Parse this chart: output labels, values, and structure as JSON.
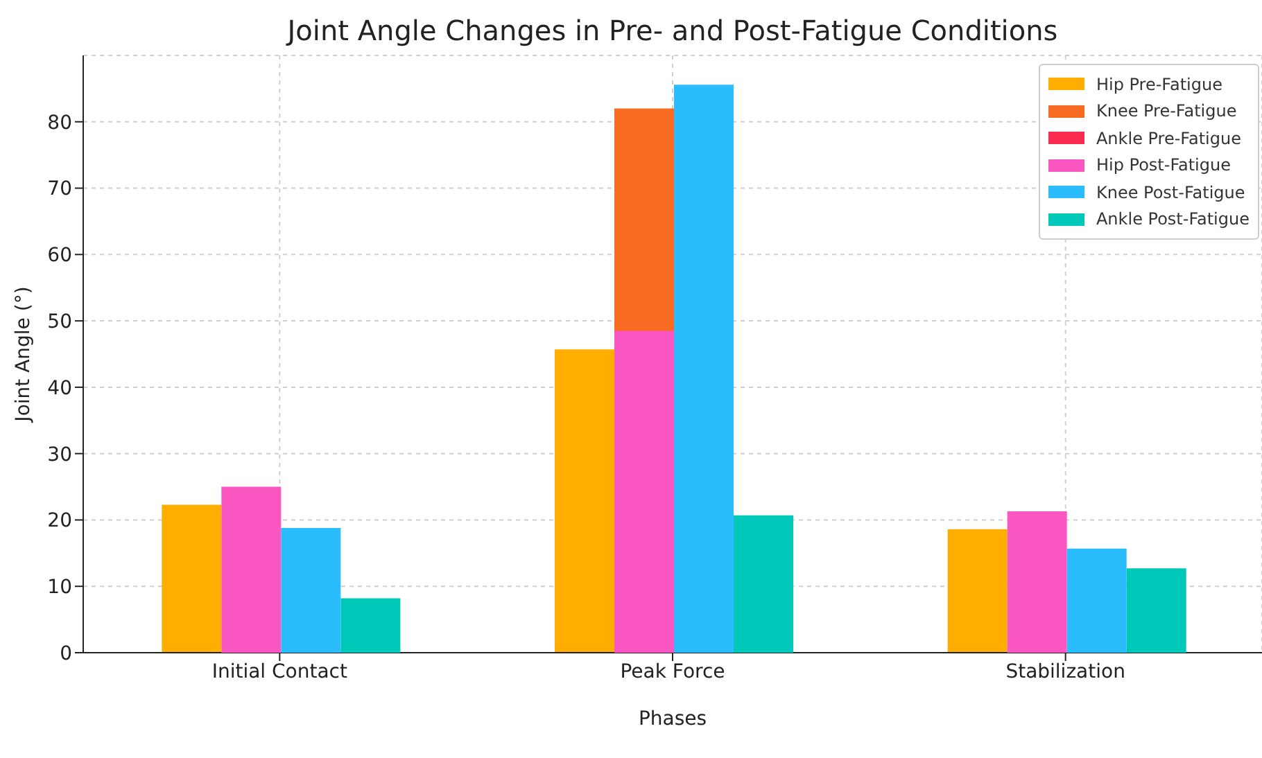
{
  "chart_data": {
    "type": "bar",
    "title": "Joint Angle Changes in Pre- and Post-Fatigue Conditions",
    "xlabel": "Phases",
    "ylabel": "Joint Angle (°)",
    "categories": [
      "Initial Contact",
      "Peak Force",
      "Stabilization"
    ],
    "series": [
      {
        "name": "Hip Pre-Fatigue",
        "color": "#ffae00",
        "values": [
          22.3,
          45.7,
          18.6
        ]
      },
      {
        "name": "Knee Pre-Fatigue",
        "color": "#f76b22",
        "values": [
          null,
          82,
          null
        ]
      },
      {
        "name": "Ankle Pre-Fatigue",
        "color": "#fb2b50",
        "values": [
          null,
          null,
          null
        ]
      },
      {
        "name": "Hip Post-Fatigue",
        "color": "#fb57c3",
        "values": [
          25.0,
          48.5,
          21.3
        ]
      },
      {
        "name": "Knee Post-Fatigue",
        "color": "#2bbcfd",
        "values": [
          18.8,
          85.6,
          15.7
        ]
      },
      {
        "name": "Ankle Post-Fatigue",
        "color": "#00c8b8",
        "values": [
          8.2,
          20.7,
          12.7
        ]
      }
    ],
    "ylim": [
      0,
      90
    ],
    "yticks": [
      0,
      10,
      20,
      30,
      40,
      50,
      60,
      70,
      80
    ],
    "grid": true,
    "legend": "top right"
  }
}
